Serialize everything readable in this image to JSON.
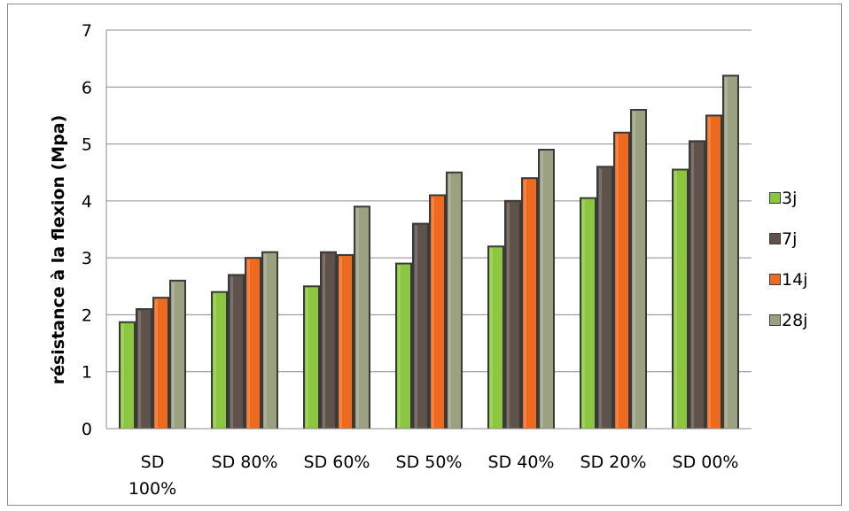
{
  "chart_data": {
    "type": "bar",
    "title": "",
    "xlabel": "",
    "ylabel": "résistance à la flexion (Mpa)",
    "ylim": [
      0,
      7
    ],
    "yticks": [
      0,
      1,
      2,
      3,
      4,
      5,
      6,
      7
    ],
    "grid": true,
    "legend_position": "right",
    "categories": [
      [
        "SD",
        "100%"
      ],
      [
        "SD 80%"
      ],
      [
        "SD 60%"
      ],
      [
        "SD 50%"
      ],
      [
        "SD 40%"
      ],
      [
        "SD 20%"
      ],
      [
        "SD 00%"
      ]
    ],
    "series": [
      {
        "name": "3j",
        "color": "#8cc63f",
        "values": [
          1.87,
          2.4,
          2.5,
          2.9,
          3.2,
          4.05,
          4.55
        ]
      },
      {
        "name": "7j",
        "color": "#5e524a",
        "values": [
          2.1,
          2.7,
          3.1,
          3.6,
          4.0,
          4.6,
          5.05
        ]
      },
      {
        "name": "14j",
        "color": "#ee6a1f",
        "values": [
          2.3,
          3.0,
          3.05,
          4.1,
          4.4,
          5.2,
          5.5
        ]
      },
      {
        "name": "28j",
        "color": "#9aa080",
        "values": [
          2.6,
          3.1,
          3.9,
          4.5,
          4.9,
          5.6,
          6.2
        ]
      }
    ]
  }
}
